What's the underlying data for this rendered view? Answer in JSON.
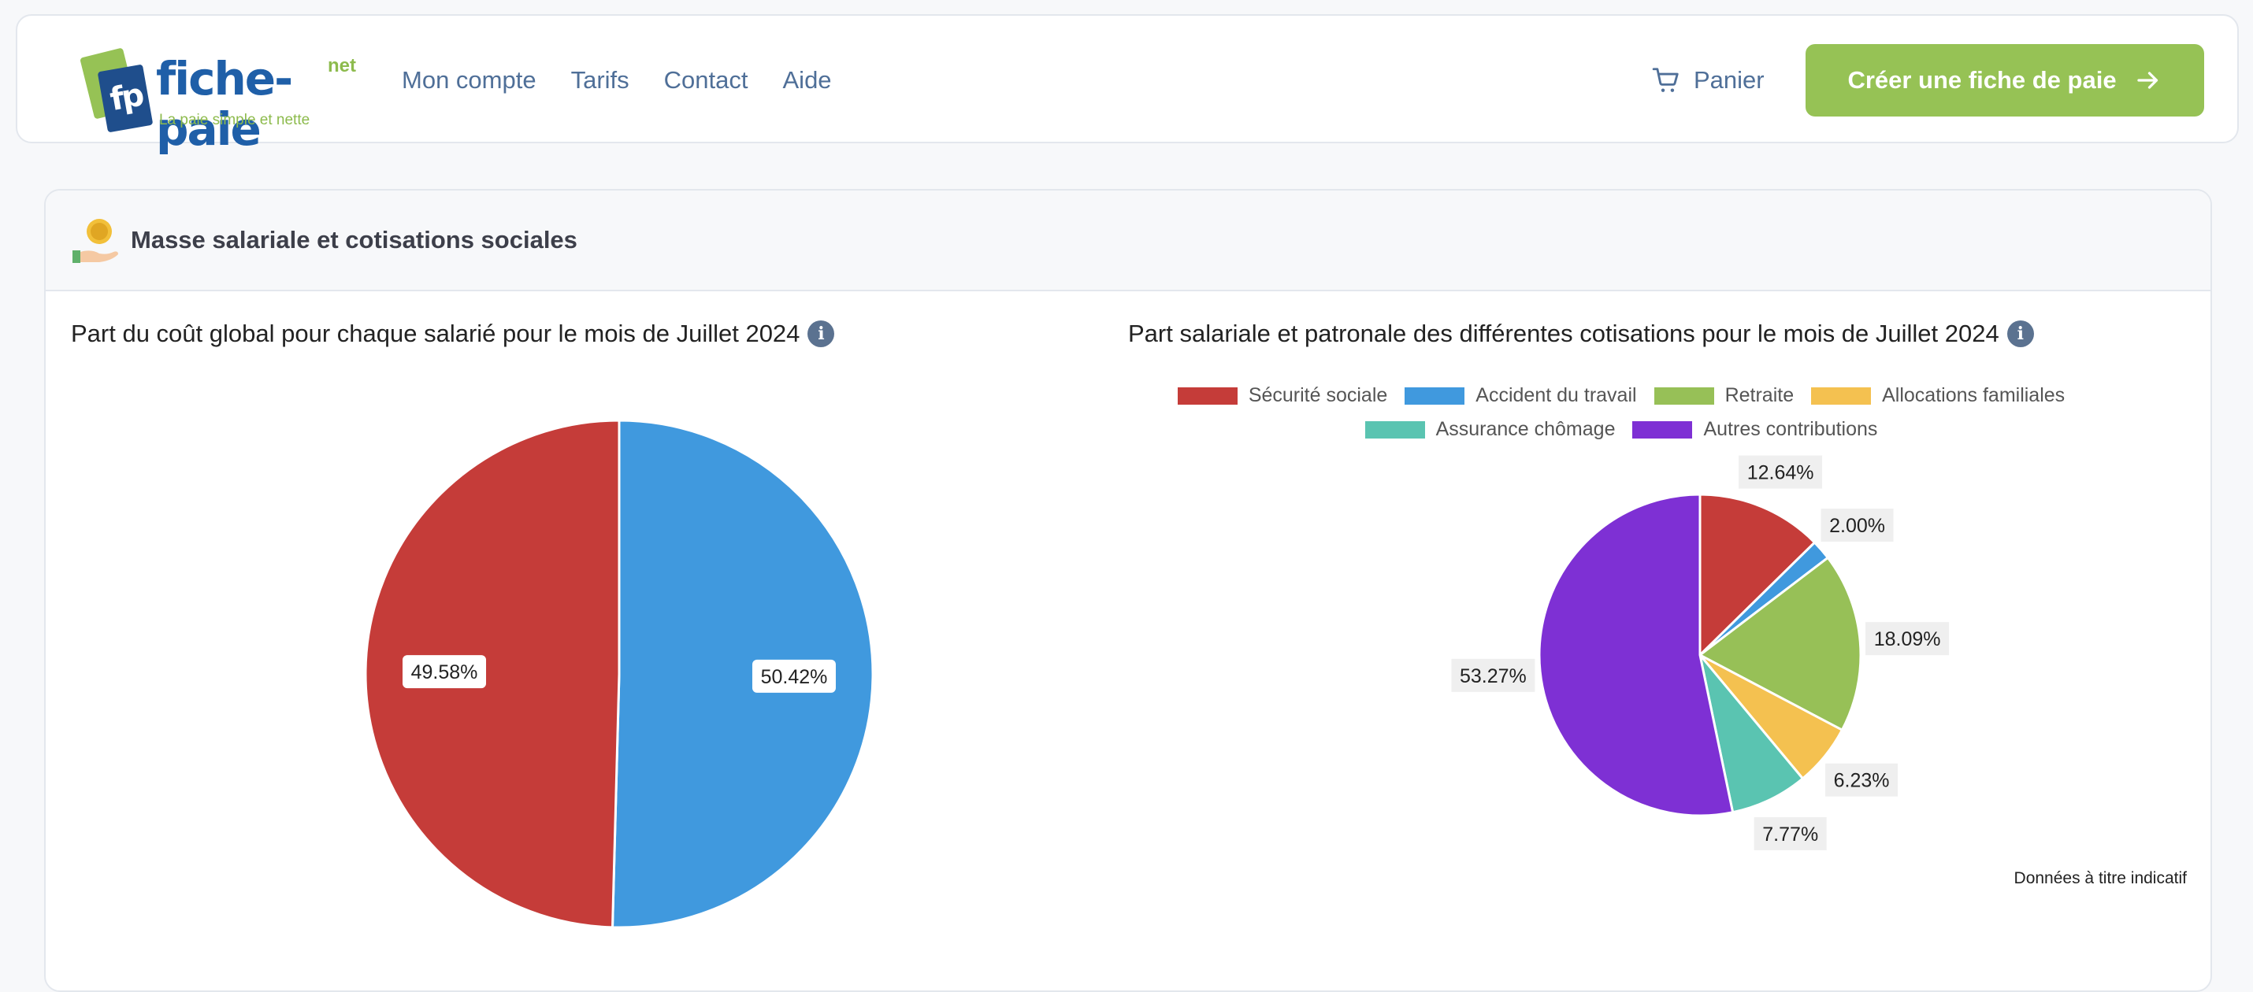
{
  "header": {
    "logo": {
      "word": "fiche-paie",
      "tld": "net",
      "monogram": "fp",
      "tagline": "La paie simple et nette"
    },
    "nav": [
      {
        "label": "Mon compte"
      },
      {
        "label": "Tarifs"
      },
      {
        "label": "Contact"
      },
      {
        "label": "Aide"
      }
    ],
    "cart_label": "Panier",
    "cart_icon": "cart-icon",
    "cta_label": "Créer une fiche de paie",
    "cta_icon": "arrow-right-icon"
  },
  "card": {
    "title": "Masse salariale et cotisations sociales",
    "icon": "money-hand-icon"
  },
  "colors": {
    "red": "#c53c39",
    "blue": "#4099de",
    "green": "#97c057",
    "yellow": "#f4c150",
    "teal": "#5ac4b1",
    "purple": "#7e30d4",
    "accent": "#96c255",
    "nav": "#4f6f98"
  },
  "chart_data": [
    {
      "type": "pie",
      "title": "Part du coût global pour chaque salarié pour le mois de Juillet 2024",
      "slices": [
        {
          "value": 50.42,
          "label": "50.42%",
          "color": "#4099de"
        },
        {
          "value": 49.58,
          "label": "49.58%",
          "color": "#c53c39"
        }
      ]
    },
    {
      "type": "pie",
      "title": "Part salariale et patronale des différentes cotisations pour le mois de Juillet 2024",
      "legend": [
        [
          "Sécurité sociale",
          "Accident du travail",
          "Retraite",
          "Allocations familiales"
        ],
        [
          "Assurance chômage",
          "Autres contributions"
        ]
      ],
      "slices": [
        {
          "name": "Sécurité sociale",
          "value": 12.64,
          "label": "12.64%",
          "color": "#c53c39"
        },
        {
          "name": "Accident du travail",
          "value": 2.0,
          "label": "2.00%",
          "color": "#4099de"
        },
        {
          "name": "Retraite",
          "value": 18.09,
          "label": "18.09%",
          "color": "#97c057"
        },
        {
          "name": "Allocations familiales",
          "value": 6.23,
          "label": "6.23%",
          "color": "#f4c150"
        },
        {
          "name": "Assurance chômage",
          "value": 7.77,
          "label": "7.77%",
          "color": "#5ac4b1"
        },
        {
          "name": "Autres contributions",
          "value": 53.27,
          "label": "53.27%",
          "color": "#7e30d4"
        }
      ],
      "footnote": "Données à titre indicatif"
    }
  ]
}
